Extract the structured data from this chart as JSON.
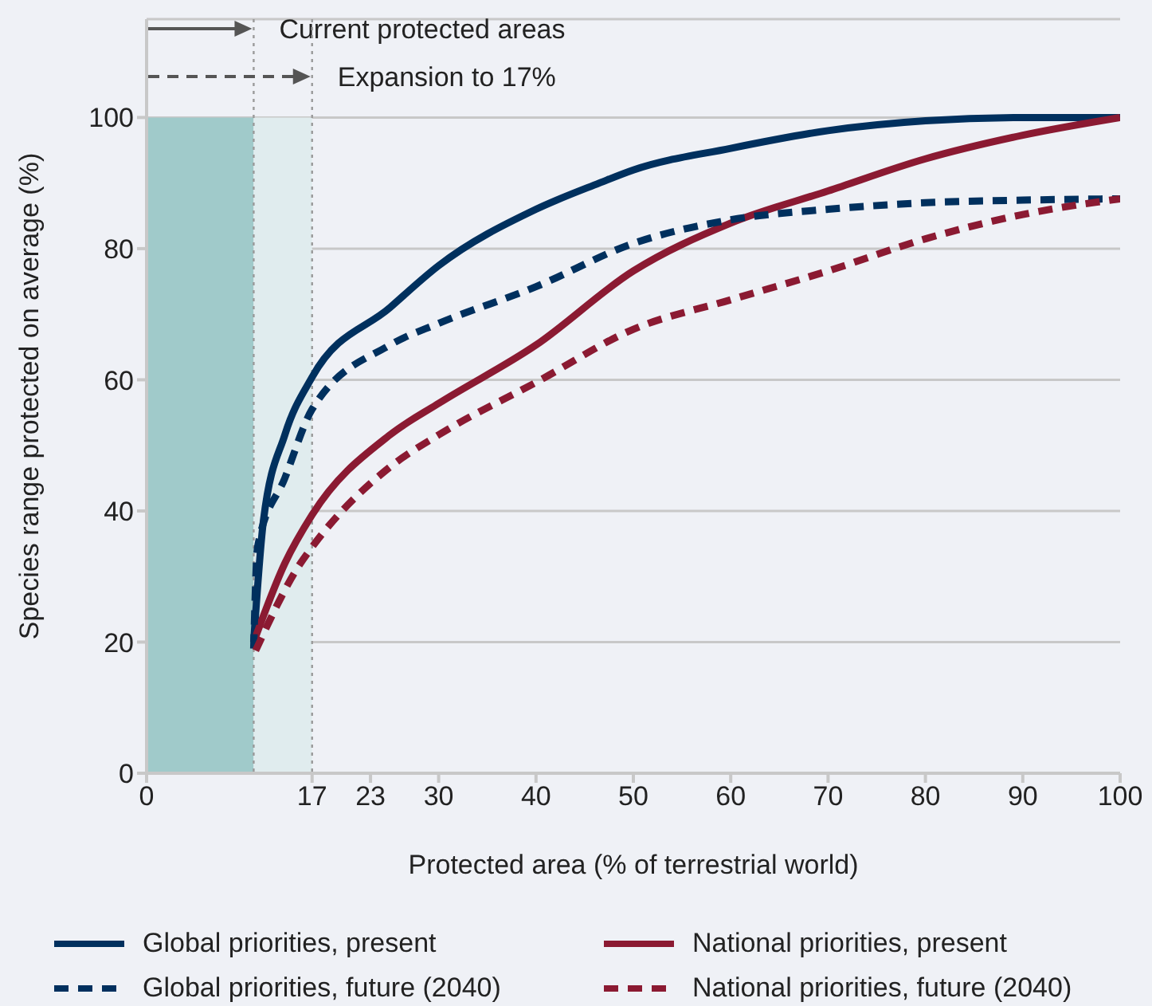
{
  "chart_data": {
    "type": "line",
    "xlabel": "Protected area (% of terrestrial world)",
    "ylabel": "Species range protected on average (%)",
    "xlim": [
      0,
      100
    ],
    "xticks": [
      0,
      17,
      23,
      30,
      40,
      50,
      60,
      70,
      80,
      90,
      100
    ],
    "ylim": [
      0,
      115
    ],
    "yticks": [
      0,
      20,
      40,
      60,
      80,
      100
    ],
    "grid": "y",
    "legend": "bottom",
    "bands": [
      {
        "axis": "x",
        "from": 0,
        "to": 11,
        "color": "#a0caca"
      },
      {
        "axis": "x",
        "from": 11,
        "to": 17,
        "color": "#e0ecee"
      }
    ],
    "ref_lines": [
      {
        "axis": "x",
        "value": 11,
        "label": "Current protected areas",
        "line_style": "dotted",
        "color": "#9a9a9a"
      },
      {
        "axis": "x",
        "value": 17,
        "label": "Expansion to 17%",
        "line_style": "dotted",
        "color": "#9a9a9a"
      }
    ],
    "series": [
      {
        "name": "Global priorities, present",
        "color": "#00305e",
        "line_style": "solid",
        "x": [
          11,
          12,
          14.2,
          17,
          25,
          30,
          40,
          46.5,
          50,
          60,
          70,
          80,
          90,
          100
        ],
        "values": [
          20,
          38.5,
          51.6,
          60.4,
          71,
          77.4,
          86,
          90,
          92,
          95.3,
          98,
          99.5,
          100,
          100
        ]
      },
      {
        "name": "National priorities, present",
        "color": "#8b1a32",
        "line_style": "solid",
        "x": [
          11,
          14.2,
          17,
          25,
          30,
          40,
          50,
          60,
          70,
          80,
          90,
          100
        ],
        "values": [
          20,
          32,
          39.4,
          51.6,
          56.4,
          65.3,
          76.6,
          83.9,
          88.8,
          93.7,
          97.3,
          100
        ]
      },
      {
        "name": "Global priorities, future (2040)",
        "color": "#00305e",
        "line_style": "dashed",
        "x": [
          11,
          11.4,
          14.2,
          17,
          25,
          30,
          40,
          50,
          60,
          70,
          80,
          90,
          100
        ],
        "values": [
          19,
          34.5,
          45,
          55.5,
          65.3,
          68.6,
          74.2,
          80.8,
          84.4,
          86,
          87,
          87.4,
          87.6
        ]
      },
      {
        "name": "National priorities, future (2040)",
        "color": "#8b1a32",
        "line_style": "dashed",
        "x": [
          11.2,
          15.8,
          17,
          25,
          30,
          40,
          50,
          60,
          70,
          80,
          90,
          100
        ],
        "values": [
          18.7,
          32,
          34.5,
          46.7,
          51.6,
          59.6,
          67.7,
          72.2,
          76.6,
          81.5,
          85.2,
          87.6
        ]
      }
    ]
  }
}
